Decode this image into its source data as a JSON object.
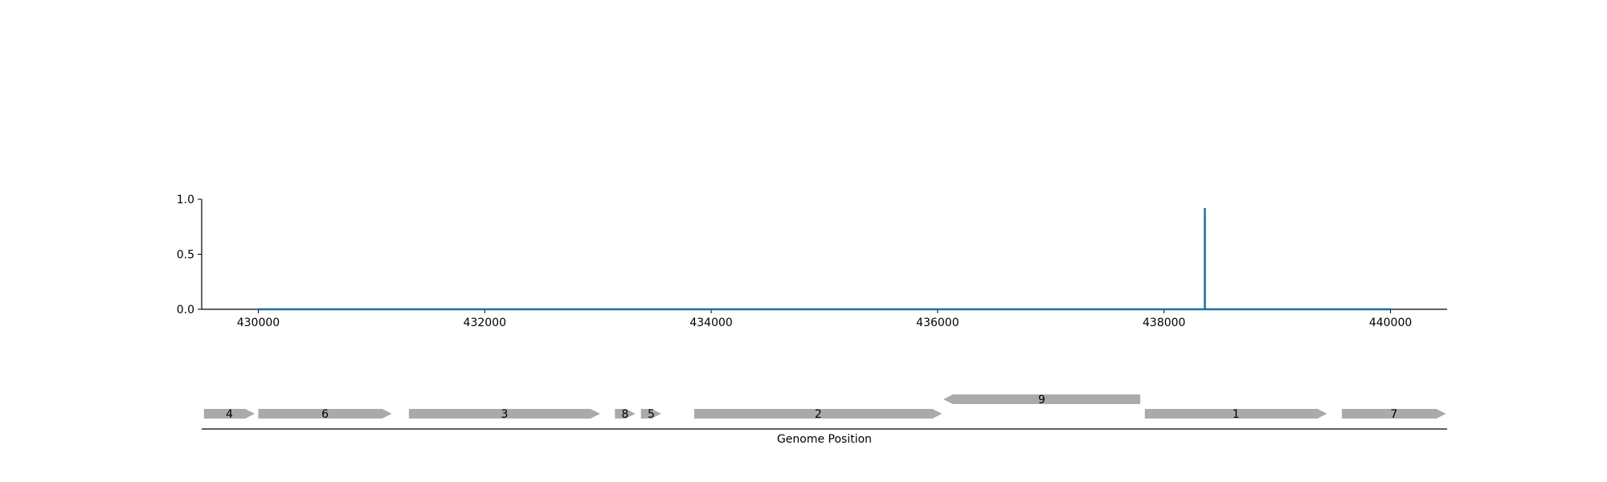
{
  "chart_data": [
    {
      "type": "line",
      "title": "",
      "xlabel": "",
      "ylabel": "",
      "xlim": [
        429500,
        440500
      ],
      "ylim": [
        0,
        1.0
      ],
      "x_ticks": [
        430000,
        432000,
        434000,
        436000,
        438000,
        440000
      ],
      "y_ticks": [
        0.0,
        0.5,
        1.0
      ],
      "x_tick_labels": [
        "430000",
        "432000",
        "434000",
        "436000",
        "438000",
        "440000"
      ],
      "y_tick_labels": [
        "0.0",
        "0.5",
        "1.0"
      ],
      "grid": false,
      "series": [
        {
          "color": "#1f6f9f",
          "points": [
            [
              430000,
              0
            ],
            [
              438360,
              0
            ],
            [
              438360,
              0.92
            ],
            [
              438360,
              0
            ],
            [
              440000,
              0
            ]
          ]
        }
      ]
    },
    {
      "type": "gene-track",
      "xlabel": "Genome Position",
      "xlim": [
        429500,
        440500
      ],
      "gene_color": "#aaaaaa",
      "genes": [
        {
          "label": "4",
          "start": 429520,
          "end": 429970,
          "strand": "+",
          "row": 0
        },
        {
          "label": "6",
          "start": 430000,
          "end": 431180,
          "strand": "+",
          "row": 0
        },
        {
          "label": "3",
          "start": 431330,
          "end": 433020,
          "strand": "+",
          "row": 0
        },
        {
          "label": "8",
          "start": 433150,
          "end": 433330,
          "strand": "+",
          "row": 0
        },
        {
          "label": "5",
          "start": 433380,
          "end": 433560,
          "strand": "+",
          "row": 0
        },
        {
          "label": "2",
          "start": 433850,
          "end": 436040,
          "strand": "+",
          "row": 0
        },
        {
          "label": "9",
          "start": 436050,
          "end": 437790,
          "strand": "-",
          "row": 1
        },
        {
          "label": "1",
          "start": 437830,
          "end": 439440,
          "strand": "+",
          "row": 0
        },
        {
          "label": "7",
          "start": 439570,
          "end": 440490,
          "strand": "+",
          "row": 0
        }
      ]
    }
  ]
}
